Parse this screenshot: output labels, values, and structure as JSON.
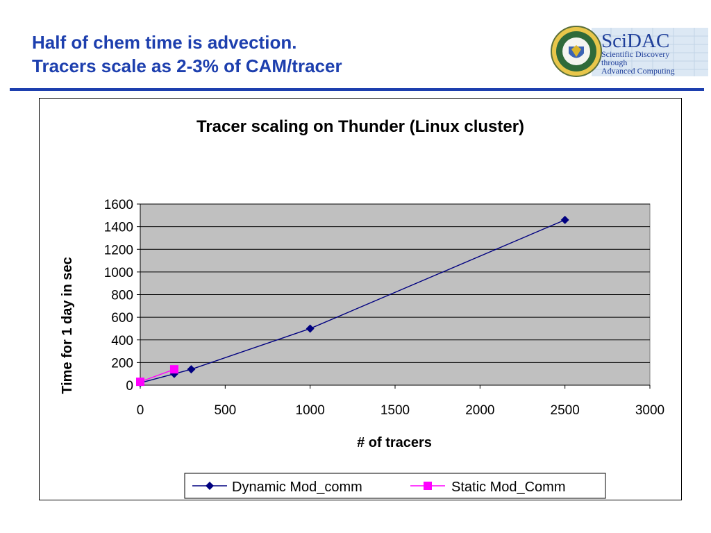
{
  "slide": {
    "title_line1": "Half of chem time is advection.",
    "title_line2": "Tracers scale as 2-3% of CAM/tracer"
  },
  "logo": {
    "name": "SciDAC",
    "tagline_line1": "Scientific Discovery",
    "tagline_line2": "through",
    "tagline_line3": "Advanced Computing"
  },
  "colors": {
    "title": "#1d3fae",
    "plot_background": "#c0c0c0",
    "dynamic_series": "#000080",
    "static_series": "#ff00ff"
  },
  "chart_data": {
    "type": "line",
    "title": "Tracer scaling on Thunder (Linux cluster)",
    "xlabel": "# of tracers",
    "ylabel": "Time for 1 day in sec",
    "xlim": [
      0,
      3000
    ],
    "ylim": [
      0,
      1600
    ],
    "x_ticks": [
      0,
      500,
      1000,
      1500,
      2000,
      2500,
      3000
    ],
    "y_ticks": [
      0,
      200,
      400,
      600,
      800,
      1000,
      1200,
      1400,
      1600
    ],
    "grid": "horizontal",
    "legend_position": "bottom",
    "series": [
      {
        "name": "Dynamic Mod_comm",
        "marker": "diamond",
        "points": [
          [
            0,
            20
          ],
          [
            200,
            100
          ],
          [
            300,
            140
          ],
          [
            1000,
            500
          ],
          [
            2500,
            1460
          ]
        ]
      },
      {
        "name": "Static Mod_Comm",
        "marker": "square",
        "points": [
          [
            0,
            30
          ],
          [
            200,
            140
          ]
        ]
      }
    ]
  }
}
